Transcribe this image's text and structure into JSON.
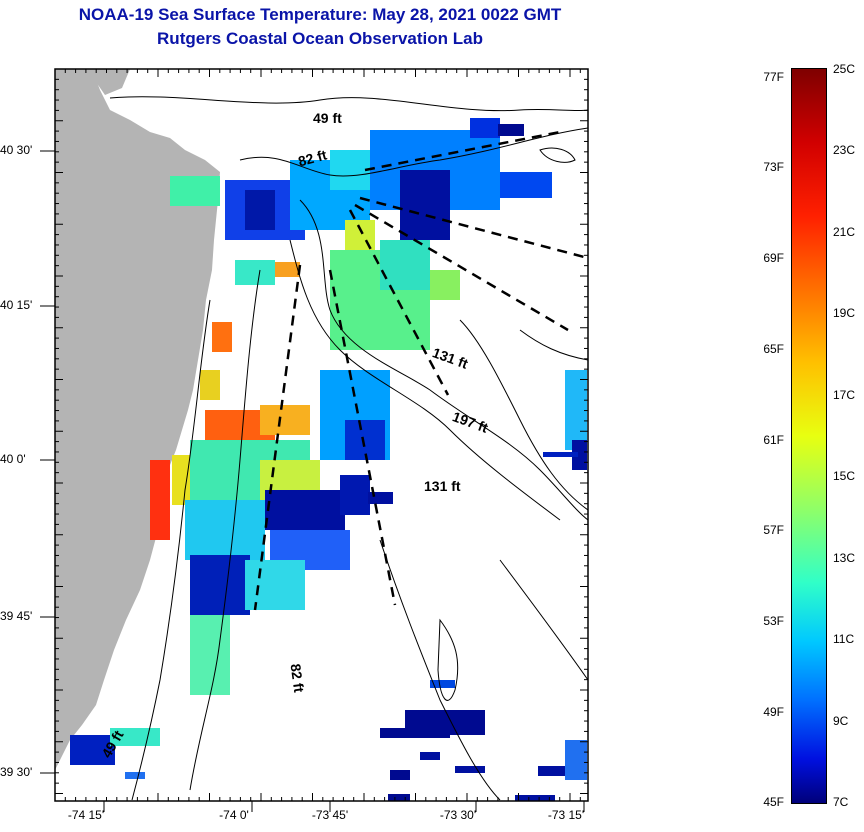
{
  "title": {
    "line1": "NOAA-19 Sea Surface Temperature:  May 28, 2021 0022 GMT",
    "line2": "Rutgers Coastal Ocean Observation Lab"
  },
  "map": {
    "y_axis_labels": [
      "40 30'",
      "40 15'",
      "40 0'",
      "39 45'",
      "39 30'"
    ],
    "x_axis_labels": [
      "-74 15'",
      "-74 0'",
      "-73 45'",
      "-73 30'",
      "-73 15'"
    ],
    "depth_labels": [
      "49 ft",
      "82 ft",
      "131 ft",
      "197 ft",
      "131 ft",
      "82 ft",
      "49 ft"
    ],
    "colors": {
      "land": "#b4b4b4",
      "water": "#ffffff",
      "title": "#0a14a8"
    }
  },
  "colorbar": {
    "fahrenheit_ticks": [
      "77F",
      "73F",
      "69F",
      "65F",
      "61F",
      "57F",
      "53F",
      "49F",
      "45F"
    ],
    "celsius_ticks": [
      "25C",
      "23C",
      "21C",
      "19C",
      "17C",
      "15C",
      "13C",
      "11C",
      "9C",
      "7C"
    ]
  }
}
